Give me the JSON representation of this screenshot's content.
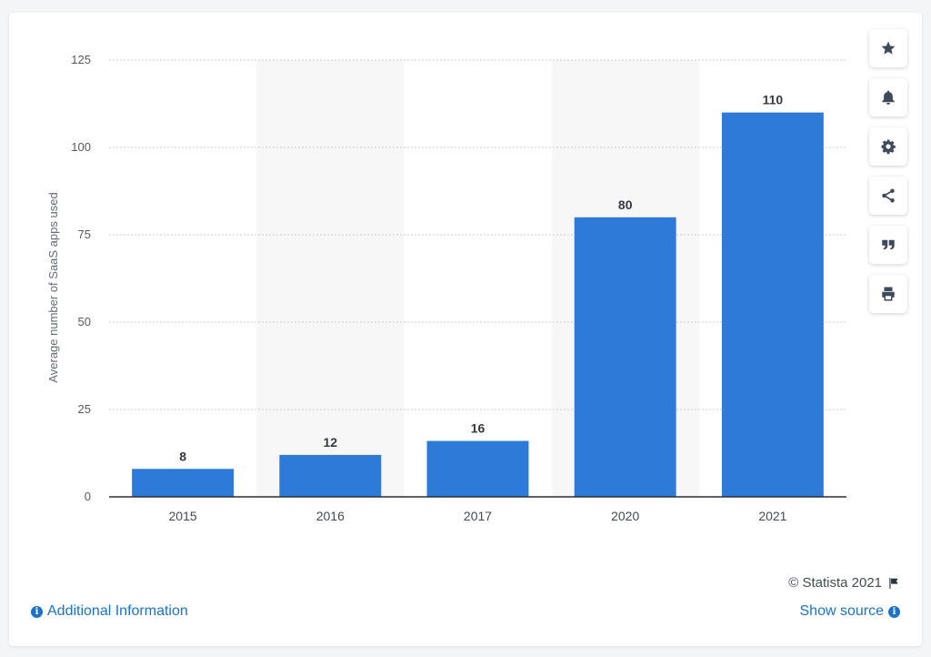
{
  "chart_data": {
    "type": "bar",
    "categories": [
      "2015",
      "2016",
      "2017",
      "2020",
      "2021"
    ],
    "values": [
      8,
      12,
      16,
      80,
      110
    ],
    "ylabel": "Average number of SaaS apps used",
    "xlabel": "",
    "ylim": [
      0,
      125
    ],
    "yticks": [
      0,
      25,
      50,
      75,
      100,
      125
    ],
    "grid": true,
    "data_labels": true,
    "bar_color": "#2e7ad9"
  },
  "toolbar": {
    "buttons": [
      "star-icon",
      "bell-icon",
      "gear-icon",
      "share-icon",
      "quote-icon",
      "print-icon"
    ]
  },
  "footer": {
    "copyright": "© Statista 2021",
    "additional_info": "Additional Information",
    "show_source": "Show source"
  },
  "colors": {
    "accent": "#1a73c8",
    "bar": "#2e7ad9",
    "band": "#f7f7f8"
  }
}
